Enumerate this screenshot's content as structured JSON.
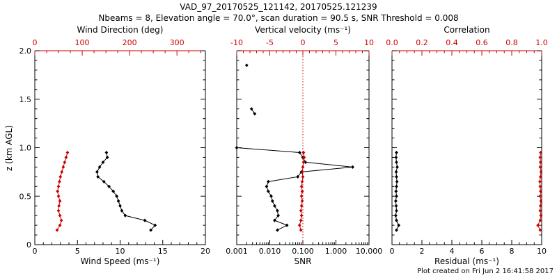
{
  "page": {
    "title_line1": "VAD_97_20170525_121142, 20170525.121239",
    "title_line2": "Nbeams = 8, Elevation angle = 70.0°, scan duration = 90.5 s, SNR Threshold = 0.008",
    "footer": "Plot created on Fri Jun  2 16:41:58 2017"
  },
  "chart_data": {
    "type": "line",
    "title": "VAD_97_20170525_121142, 20170525.121239",
    "subtitle": "Nbeams = 8, Elevation angle = 70.0°, scan duration = 90.5 s, SNR Threshold = 0.008",
    "ylabel": "z (km AGL)",
    "ylim": [
      0,
      2
    ],
    "yaxis": {
      "major": [
        0,
        0.5,
        1,
        1.5,
        2
      ],
      "labels": [
        "0",
        "0.5",
        "1.0",
        "1.5",
        "2.0"
      ],
      "minor_step": 0.1
    },
    "colors": {
      "primary": "#000000",
      "secondary": "#cc0000"
    },
    "panels": [
      {
        "name": "wind-panel",
        "bottom_axis": {
          "label": "Wind Speed (ms⁻¹)",
          "scale": "linear",
          "lim": [
            0,
            20
          ],
          "major": [
            0,
            5,
            10,
            15,
            20
          ],
          "labels": [
            "0",
            "5",
            "10",
            "15",
            "20"
          ],
          "minor_step": 1,
          "color": "#000000"
        },
        "top_axis": {
          "label": "Wind Direction (deg)",
          "scale": "linear",
          "lim": [
            0,
            360
          ],
          "major": [
            0,
            100,
            200,
            300
          ],
          "labels": [
            "0",
            "100",
            "200",
            "300"
          ],
          "minor_step": 25,
          "color": "#cc0000"
        },
        "series": [
          {
            "name": "wind_speed",
            "axis": "bottom",
            "color": "#000000",
            "segments": [
              {
                "z": [
                  0.15,
                  0.2,
                  0.25,
                  0.3,
                  0.35,
                  0.4,
                  0.45,
                  0.5,
                  0.55,
                  0.6,
                  0.65,
                  0.7,
                  0.75,
                  0.8,
                  0.85,
                  0.9,
                  0.95
                ],
                "values": [
                  13.6,
                  14.1,
                  12.9,
                  10.6,
                  10.2,
                  10.0,
                  9.8,
                  9.6,
                  9.2,
                  8.7,
                  8.1,
                  7.4,
                  7.3,
                  7.6,
                  8.0,
                  8.5,
                  8.4
                ]
              }
            ]
          },
          {
            "name": "wind_direction",
            "axis": "top",
            "color": "#cc0000",
            "segments": [
              {
                "z": [
                  0.15,
                  0.2,
                  0.25,
                  0.3,
                  0.35,
                  0.4,
                  0.45,
                  0.5,
                  0.55,
                  0.6,
                  0.65,
                  0.7,
                  0.75,
                  0.8,
                  0.85,
                  0.9,
                  0.95
                ],
                "values": [
                  47,
                  53,
                  56,
                  53,
                  50,
                  51,
                  53,
                  50,
                  48,
                  50,
                  52,
                  54,
                  57,
                  60,
                  63,
                  66,
                  69
                ]
              }
            ]
          }
        ]
      },
      {
        "name": "snr-panel",
        "bottom_axis": {
          "label": "SNR",
          "scale": "log",
          "lim": [
            0.001,
            10
          ],
          "major": [
            0.001,
            0.01,
            0.1,
            1,
            10
          ],
          "labels": [
            "0.001",
            "0.010",
            "0.100",
            "1.000",
            "10.000"
          ],
          "color": "#000000"
        },
        "top_axis": {
          "label": "Vertical velocity (ms⁻¹)",
          "scale": "linear",
          "lim": [
            -10,
            10
          ],
          "major": [
            -10,
            -5,
            0,
            5,
            10
          ],
          "labels": [
            "-10",
            "-5",
            "0",
            "5",
            "10"
          ],
          "minor_step": 1,
          "color": "#cc0000"
        },
        "refline": {
          "axis": "top",
          "value": 0,
          "color": "#cc0000",
          "style": "dotted"
        },
        "series": [
          {
            "name": "snr",
            "axis": "bottom",
            "color": "#000000",
            "segments": [
              {
                "z": [
                  0.15,
                  0.2,
                  0.25,
                  0.3,
                  0.35,
                  0.4,
                  0.45,
                  0.5,
                  0.55,
                  0.6,
                  0.65,
                  0.7,
                  0.75,
                  0.8,
                  0.85,
                  0.9,
                  0.95,
                  1.0
                ],
                "values": [
                  0.017,
                  0.033,
                  0.014,
                  0.018,
                  0.017,
                  0.014,
                  0.012,
                  0.011,
                  0.009,
                  0.008,
                  0.009,
                  0.07,
                  0.09,
                  3.2,
                  0.12,
                  0.1,
                  0.08,
                  0.001
                ]
              },
              {
                "z": [
                  1.35,
                  1.4
                ],
                "values": [
                  0.0035,
                  0.0028
                ]
              },
              {
                "z": [
                  1.85
                ],
                "values": [
                  0.002
                ]
              }
            ]
          },
          {
            "name": "vertical_velocity",
            "axis": "top",
            "color": "#cc0000",
            "segments": [
              {
                "z": [
                  0.15,
                  0.2,
                  0.25,
                  0.3,
                  0.35,
                  0.4,
                  0.45,
                  0.5,
                  0.55,
                  0.6,
                  0.65,
                  0.7,
                  0.75,
                  0.8,
                  0.85,
                  0.9,
                  0.95
                ],
                "values": [
                  -0.3,
                  -0.5,
                  -0.3,
                  -0.2,
                  -0.3,
                  -0.2,
                  -0.1,
                  -0.2,
                  -0.1,
                  -0.2,
                  -0.1,
                  0.0,
                  -0.1,
                  0.0,
                  0.1,
                  0.2,
                  0.1
                ]
              }
            ]
          }
        ]
      },
      {
        "name": "residual-panel",
        "bottom_axis": {
          "label": "Residual (ms⁻¹)",
          "scale": "linear",
          "lim": [
            0,
            10
          ],
          "major": [
            0,
            2,
            4,
            6,
            8,
            10
          ],
          "labels": [
            "0",
            "2",
            "4",
            "6",
            "8",
            "10"
          ],
          "minor_step": 0.5,
          "color": "#000000"
        },
        "top_axis": {
          "label": "Correlation",
          "scale": "linear",
          "lim": [
            0,
            1
          ],
          "major": [
            0,
            0.2,
            0.4,
            0.6,
            0.8,
            1
          ],
          "labels": [
            "0.0",
            "0.2",
            "0.4",
            "0.6",
            "0.8",
            "1.0"
          ],
          "minor_step": 0.05,
          "color": "#cc0000"
        },
        "series": [
          {
            "name": "residual",
            "axis": "bottom",
            "color": "#000000",
            "segments": [
              {
                "z": [
                  0.15,
                  0.2,
                  0.25,
                  0.3,
                  0.35,
                  0.4,
                  0.45,
                  0.5,
                  0.55,
                  0.6,
                  0.65,
                  0.7,
                  0.75,
                  0.8,
                  0.85,
                  0.9,
                  0.95
                ],
                "values": [
                  0.3,
                  0.45,
                  0.3,
                  0.25,
                  0.3,
                  0.28,
                  0.25,
                  0.3,
                  0.27,
                  0.3,
                  0.33,
                  0.3,
                  0.28,
                  0.35,
                  0.3,
                  0.27,
                  0.3
                ]
              }
            ]
          },
          {
            "name": "correlation",
            "axis": "top",
            "color": "#cc0000",
            "segments": [
              {
                "z": [
                  0.15,
                  0.2,
                  0.25,
                  0.3,
                  0.35,
                  0.4,
                  0.45,
                  0.5,
                  0.55,
                  0.6,
                  0.65,
                  0.7,
                  0.75,
                  0.8,
                  0.85,
                  0.9,
                  0.95
                ],
                "values": [
                  0.99,
                  0.975,
                  0.99,
                  0.995,
                  0.99,
                  0.992,
                  0.995,
                  0.99,
                  0.993,
                  0.99,
                  0.988,
                  0.992,
                  0.995,
                  0.99,
                  0.992,
                  0.99,
                  0.993
                ]
              }
            ]
          }
        ]
      }
    ]
  }
}
